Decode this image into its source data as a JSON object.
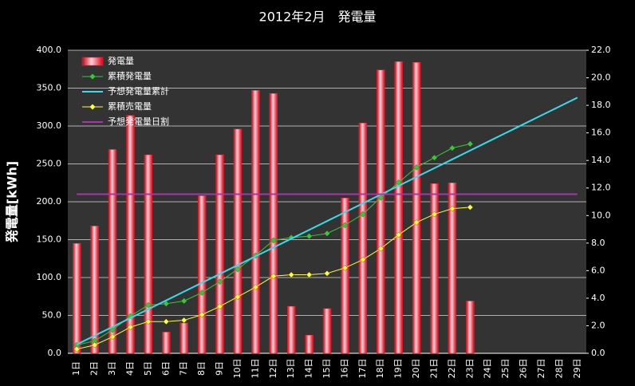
{
  "chart_data": {
    "type": "bar",
    "title": "2012年2月　発電量",
    "ylabel": "発電量[kWh]",
    "categories": [
      "1日",
      "2日",
      "3日",
      "4日",
      "5日",
      "6日",
      "7日",
      "8日",
      "9日",
      "10日",
      "11日",
      "12日",
      "13日",
      "14日",
      "15日",
      "16日",
      "17日",
      "18日",
      "19日",
      "20日",
      "21日",
      "22日",
      "23日",
      "24日",
      "25日",
      "26日",
      "27日",
      "28日",
      "29日"
    ],
    "series": [
      {
        "name": "発電量",
        "type": "bar",
        "color": "#ff2030",
        "values": [
          145,
          168,
          269,
          314,
          262,
          28,
          40,
          208,
          262,
          296,
          347,
          343,
          62,
          24,
          59,
          205,
          304,
          374,
          385,
          384,
          224,
          225,
          69,
          null,
          null,
          null,
          null,
          null,
          null
        ]
      },
      {
        "name": "累積発電量",
        "type": "line",
        "axis": "y2",
        "color": "#33cc33",
        "marker": "diamond",
        "values": [
          0.6,
          0.9,
          1.7,
          2.7,
          3.5,
          3.6,
          3.8,
          4.4,
          5.2,
          6.1,
          7.1,
          8.2,
          8.4,
          8.5,
          8.7,
          9.3,
          10.1,
          11.3,
          12.4,
          13.5,
          14.2,
          14.9,
          15.2,
          null,
          null,
          null,
          null,
          null,
          null
        ]
      },
      {
        "name": "予想発電量累計",
        "type": "line",
        "axis": "y2",
        "color": "#33ddee",
        "values": [
          0.64,
          1.28,
          1.92,
          2.56,
          3.2,
          3.84,
          4.48,
          5.12,
          5.76,
          6.4,
          7.04,
          7.68,
          8.32,
          8.96,
          9.6,
          10.24,
          10.88,
          11.52,
          12.16,
          12.8,
          13.44,
          14.08,
          14.72,
          15.36,
          16.0,
          16.64,
          17.28,
          17.92,
          18.56
        ]
      },
      {
        "name": "累積売電量",
        "type": "line",
        "axis": "y2",
        "color": "#ffff33",
        "marker": "diamond",
        "values": [
          0.3,
          0.6,
          1.2,
          1.9,
          2.3,
          2.3,
          2.4,
          2.8,
          3.4,
          4.1,
          4.8,
          5.6,
          5.7,
          5.7,
          5.8,
          6.2,
          6.8,
          7.6,
          8.6,
          9.5,
          10.1,
          10.5,
          10.6,
          null,
          null,
          null,
          null,
          null,
          null
        ]
      },
      {
        "name": "予想発電量日割",
        "type": "line",
        "color": "#aa33aa",
        "values": [
          210,
          210,
          210,
          210,
          210,
          210,
          210,
          210,
          210,
          210,
          210,
          210,
          210,
          210,
          210,
          210,
          210,
          210,
          210,
          210,
          210,
          210,
          210,
          210,
          210,
          210,
          210,
          210,
          210
        ]
      }
    ],
    "ylim": [
      0,
      400
    ],
    "yticks": [
      {
        "value": 0,
        "label": "0.0"
      },
      {
        "value": 50,
        "label": "50.0"
      },
      {
        "value": 100,
        "label": "100.0"
      },
      {
        "value": 150,
        "label": "150.0"
      },
      {
        "value": 200,
        "label": "200.0"
      },
      {
        "value": 250,
        "label": "250.0"
      },
      {
        "value": 300,
        "label": "300.0"
      },
      {
        "value": 350,
        "label": "350.0"
      },
      {
        "value": 400,
        "label": "400.0"
      }
    ],
    "y2lim": [
      0,
      22
    ],
    "y2ticks": [
      {
        "value": 0,
        "label": "0.0"
      },
      {
        "value": 2,
        "label": "2.0"
      },
      {
        "value": 4,
        "label": "4.0"
      },
      {
        "value": 6,
        "label": "6.0"
      },
      {
        "value": 8,
        "label": "8.0"
      },
      {
        "value": 10,
        "label": "10.0"
      },
      {
        "value": 12,
        "label": "12.0"
      },
      {
        "value": 14,
        "label": "14.0"
      },
      {
        "value": 16,
        "label": "16.0"
      },
      {
        "value": 18,
        "label": "18.0"
      },
      {
        "value": 20,
        "label": "20.0"
      },
      {
        "value": 22,
        "label": "22.0"
      }
    ],
    "grid": true,
    "legend": "top-left"
  }
}
